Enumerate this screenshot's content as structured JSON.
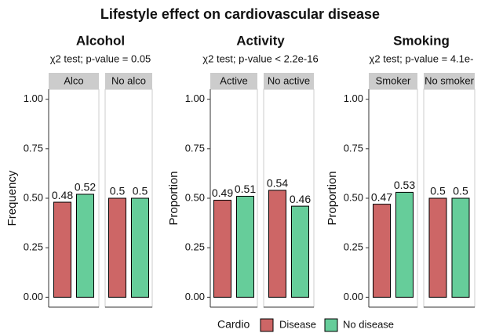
{
  "title": "Lifestyle effect on cardiovascular disease",
  "legend_title": "Cardio",
  "chart_data": [
    {
      "type": "bar",
      "title": "Alcohol",
      "subtitle": "χ2 test; p-value = 0.05",
      "y_label": "Frequency",
      "categories": [
        "Alco",
        "No alco"
      ],
      "series": [
        {
          "name": "Disease",
          "color": "#cd6666",
          "values": [
            0.48,
            0.5
          ]
        },
        {
          "name": "No disease",
          "color": "#66cd9a",
          "values": [
            0.52,
            0.5
          ]
        }
      ],
      "ylim": [
        -0.05,
        1.05
      ],
      "yticks": [
        {
          "value": 0,
          "label": "0.00"
        },
        {
          "value": 0.25,
          "label": "0.25"
        },
        {
          "value": 0.5,
          "label": "0.50"
        },
        {
          "value": 0.75,
          "label": "0.75"
        },
        {
          "value": 1,
          "label": "1.00"
        }
      ]
    },
    {
      "type": "bar",
      "title": "Activity",
      "subtitle": "χ2 test; p-value < 2.2e-16",
      "y_label": "Proportion",
      "categories": [
        "Active",
        "No active"
      ],
      "series": [
        {
          "name": "Disease",
          "color": "#cd6666",
          "values": [
            0.49,
            0.54
          ]
        },
        {
          "name": "No disease",
          "color": "#66cd9a",
          "values": [
            0.51,
            0.46
          ]
        }
      ],
      "ylim": [
        -0.05,
        1.05
      ],
      "yticks": [
        {
          "value": 0,
          "label": "0.00"
        },
        {
          "value": 0.25,
          "label": "0.25"
        },
        {
          "value": 0.5,
          "label": "0.50"
        },
        {
          "value": 0.75,
          "label": "0.75"
        },
        {
          "value": 1,
          "label": "1.00"
        }
      ]
    },
    {
      "type": "bar",
      "title": "Smoking",
      "subtitle": "χ2 test; p-value = 4.1e-",
      "y_label": "Proportion",
      "categories": [
        "Smoker",
        "No smoker"
      ],
      "series": [
        {
          "name": "Disease",
          "color": "#cd6666",
          "values": [
            0.47,
            0.5
          ]
        },
        {
          "name": "No disease",
          "color": "#66cd9a",
          "values": [
            0.53,
            0.5
          ]
        }
      ],
      "ylim": [
        -0.05,
        1.05
      ],
      "yticks": [
        {
          "value": 0,
          "label": "0.00"
        },
        {
          "value": 0.25,
          "label": "0.25"
        },
        {
          "value": 0.5,
          "label": "0.50"
        },
        {
          "value": 0.75,
          "label": "0.75"
        },
        {
          "value": 1,
          "label": "1.00"
        }
      ]
    }
  ]
}
